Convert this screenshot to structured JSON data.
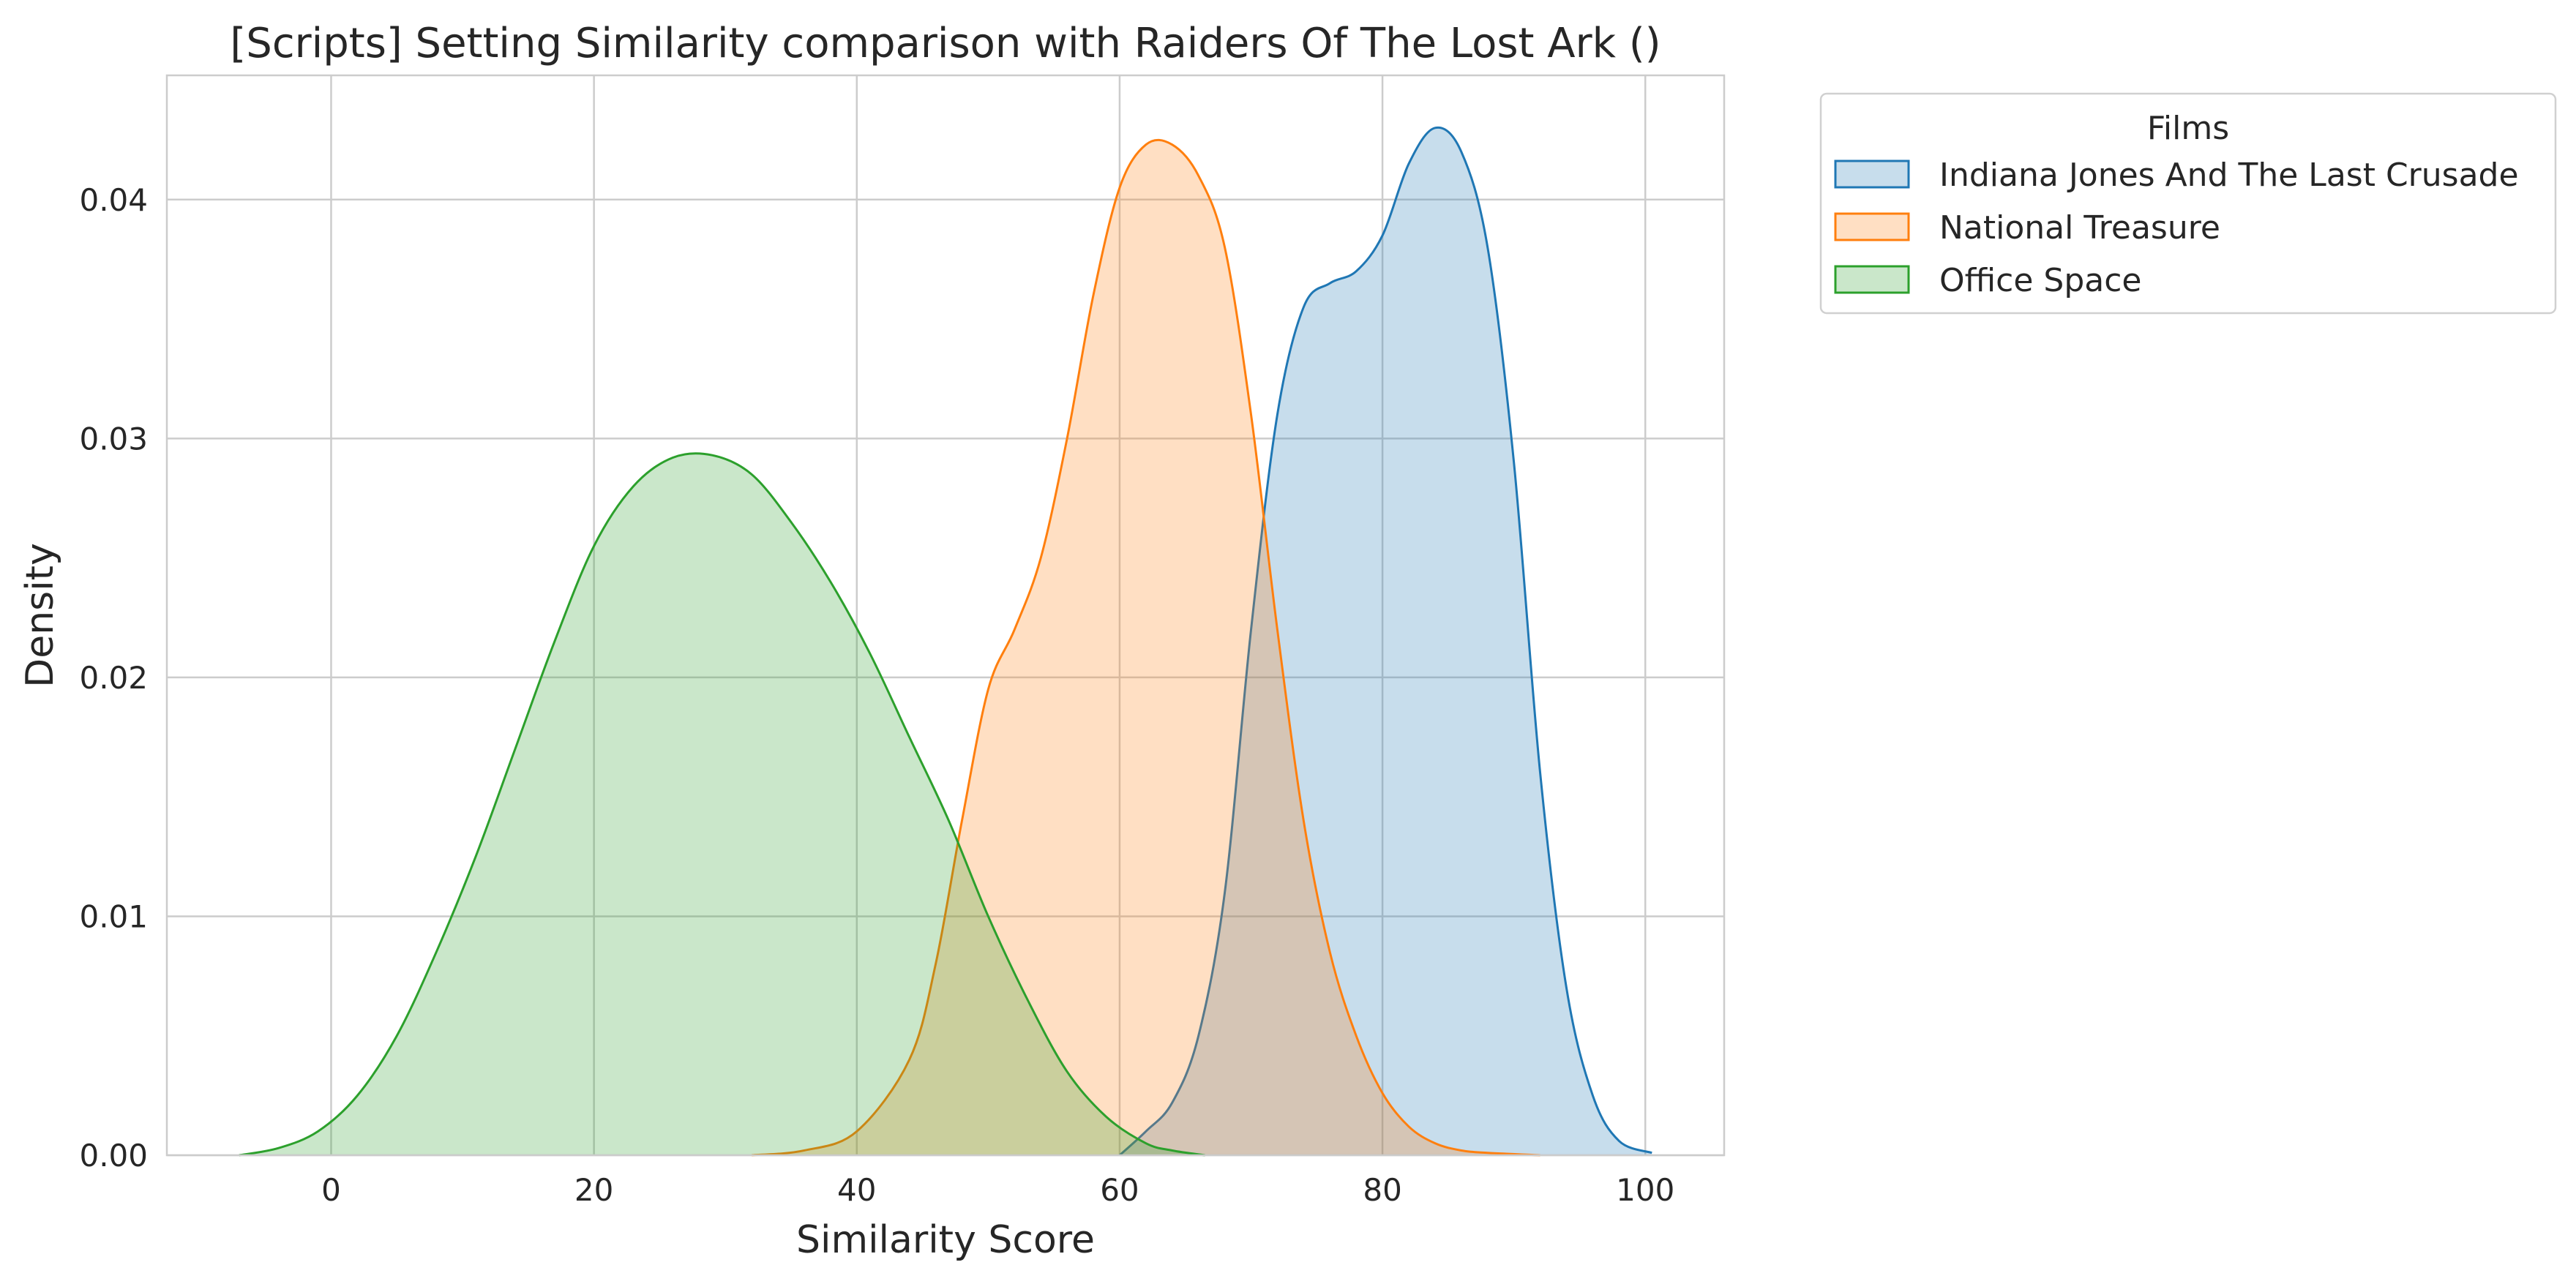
{
  "chart_data": {
    "type": "area",
    "title": "[Scripts] Setting Similarity comparison with Raiders Of The Lost Ark ()",
    "xlabel": "Similarity Score",
    "ylabel": "Density",
    "xlim": [
      -12.5,
      106
    ],
    "ylim": [
      0,
      0.0452
    ],
    "x_ticks": [
      0,
      20,
      40,
      60,
      80,
      100
    ],
    "x_tick_labels": [
      "0",
      "20",
      "40",
      "60",
      "80",
      "100"
    ],
    "y_ticks": [
      0.0,
      0.01,
      0.02,
      0.03,
      0.04
    ],
    "y_tick_labels": [
      "0.00",
      "0.01",
      "0.02",
      "0.03",
      "0.04"
    ],
    "grid": true,
    "legend": {
      "title": "Films",
      "placement": "outside top-right"
    },
    "series": [
      {
        "name": "Indiana Jones And The Last Crusade",
        "color": "#1f77b4",
        "fill": "#c6dbec",
        "x": [
          60,
          62,
          64,
          66,
          68,
          70,
          72,
          74,
          76,
          78,
          80,
          82,
          84,
          86,
          88,
          90,
          92,
          94,
          96,
          98,
          100.5
        ],
        "y": [
          0.0,
          0.001,
          0.0022,
          0.005,
          0.011,
          0.022,
          0.031,
          0.0355,
          0.0365,
          0.037,
          0.0385,
          0.0415,
          0.043,
          0.042,
          0.038,
          0.029,
          0.016,
          0.007,
          0.0025,
          0.0006,
          0.0001
        ]
      },
      {
        "name": "National Treasure",
        "color": "#ff7f0e",
        "fill": "#fdd8bb",
        "x": [
          32,
          36,
          40,
          44,
          46,
          48,
          50,
          52,
          54,
          56,
          58,
          60,
          62,
          64,
          66,
          68,
          70,
          72,
          74,
          76,
          78,
          80,
          82,
          84,
          86,
          88,
          92
        ],
        "y": [
          0.0,
          0.0002,
          0.001,
          0.004,
          0.008,
          0.014,
          0.0195,
          0.022,
          0.025,
          0.03,
          0.036,
          0.0405,
          0.0423,
          0.0423,
          0.041,
          0.038,
          0.031,
          0.022,
          0.014,
          0.0085,
          0.005,
          0.0026,
          0.0012,
          0.0005,
          0.0002,
          0.0001,
          0.0
        ]
      },
      {
        "name": "Office Space",
        "color": "#2ca02c",
        "fill": "#c9e6c9",
        "x": [
          -7,
          -4,
          -1,
          2,
          5,
          8,
          11,
          14,
          17,
          20,
          23,
          26,
          29,
          32,
          35,
          38,
          41,
          44,
          47,
          50,
          53,
          56,
          59,
          62,
          64,
          66.5
        ],
        "y": [
          0.0,
          0.0003,
          0.001,
          0.0025,
          0.005,
          0.0085,
          0.0125,
          0.017,
          0.0215,
          0.0255,
          0.028,
          0.0292,
          0.0293,
          0.0285,
          0.0265,
          0.024,
          0.021,
          0.0175,
          0.014,
          0.01,
          0.0065,
          0.0035,
          0.0016,
          0.0005,
          0.0002,
          0.0
        ]
      }
    ]
  }
}
